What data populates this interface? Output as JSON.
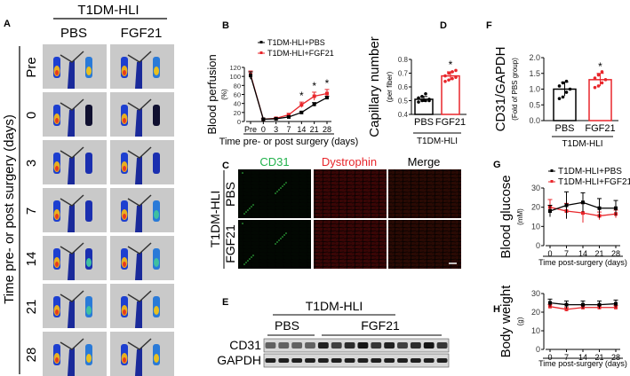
{
  "panel_labels": {
    "A": "A",
    "B": "B",
    "C": "C",
    "D": "D",
    "E": "E",
    "F": "F",
    "G": "G",
    "H": "H"
  },
  "panel_a": {
    "group_title": "T1DM-HLI",
    "columns": [
      "PBS",
      "FGF21"
    ],
    "rows": [
      "Pre",
      "0",
      "3",
      "7",
      "14",
      "21",
      "28"
    ],
    "ylabel": "Time pre- or post surgery (days)"
  },
  "panel_c": {
    "columns": [
      "CD31",
      "Dystrophin",
      "Merge"
    ],
    "column_colors": [
      "#22b24c",
      "#e8262b",
      "#000000"
    ],
    "group_label": "T1DM-HLI",
    "rows": [
      "PBS",
      "FGF21"
    ]
  },
  "panel_e": {
    "group_title": "T1DM-HLI",
    "groups": [
      "PBS",
      "FGF21"
    ],
    "bands": [
      "CD31",
      "GAPDH"
    ],
    "pbs_lanes": 4,
    "fgf21_lanes": 10
  },
  "colors": {
    "pbs": "#000000",
    "fgf21": "#e8262b"
  },
  "chart_data": [
    {
      "id": "B",
      "type": "line",
      "ylabel": "Blood perfusion",
      "yunit": "(%)",
      "xlabel": "Time pre- or post surgery (days)",
      "categories": [
        "Pre",
        "0",
        "3",
        "7",
        "14",
        "21",
        "28"
      ],
      "ylim": [
        0,
        120
      ],
      "yticks": [
        0,
        20,
        40,
        60,
        80,
        100,
        120
      ],
      "legend": "top",
      "series": [
        {
          "name": "T1DM-HLI+PBS",
          "values": [
            102,
            5,
            6,
            10,
            20,
            38,
            53
          ],
          "error": [
            8,
            1,
            1,
            2,
            2,
            4,
            3
          ]
        },
        {
          "name": "T1DM-HLI+FGF21",
          "values": [
            104,
            5,
            7,
            15,
            37,
            56,
            62
          ],
          "error": [
            8,
            1,
            2,
            3,
            6,
            9,
            9
          ]
        }
      ],
      "significance": [
        "",
        "",
        "",
        "",
        "*",
        "*",
        "*"
      ]
    },
    {
      "id": "D",
      "type": "bar",
      "ylabel": "Capillary number",
      "yunit": "(per fiber)",
      "categories": [
        "PBS",
        "FGF21"
      ],
      "group_label": "T1DM-HLI",
      "values": [
        0.51,
        0.68
      ],
      "error": [
        0.02,
        0.03
      ],
      "ylim": [
        0.4,
        0.8
      ],
      "yticks": [
        0.4,
        0.5,
        0.6,
        0.7,
        0.8
      ],
      "points": [
        [
          0.49,
          0.5,
          0.5,
          0.51,
          0.52,
          0.53,
          0.55,
          0.5
        ],
        [
          0.64,
          0.65,
          0.66,
          0.67,
          0.68,
          0.7,
          0.71,
          0.72
        ]
      ],
      "significance": [
        "",
        "*"
      ]
    },
    {
      "id": "F",
      "type": "bar",
      "ylabel": "CD31/GAPDH",
      "yunit": "(Fold of PBS group)",
      "categories": [
        "PBS",
        "FGF21"
      ],
      "group_label": "T1DM-HLI",
      "values": [
        1.0,
        1.3
      ],
      "error": [
        0.22,
        0.2
      ],
      "ylim": [
        0,
        2.0
      ],
      "yticks": [
        0.0,
        0.5,
        1.0,
        1.5,
        2.0
      ],
      "points": [
        [
          0.7,
          0.75,
          0.9,
          1.0,
          1.1,
          1.2,
          1.25
        ],
        [
          1.05,
          1.1,
          1.2,
          1.3,
          1.35,
          1.45,
          1.55
        ]
      ],
      "significance": [
        "",
        "*"
      ]
    },
    {
      "id": "G",
      "type": "line",
      "ylabel": "Blood glucose",
      "yunit": "(mM)",
      "xlabel": "Time post-surgery (days)",
      "categories": [
        "0",
        "7",
        "14",
        "21",
        "28"
      ],
      "ylim": [
        0,
        30
      ],
      "yticks": [
        0,
        10,
        20,
        30
      ],
      "legend": "top",
      "series": [
        {
          "name": "T1DM-HLI+PBS",
          "values": [
            18,
            21,
            22.5,
            19.5,
            19.5
          ],
          "error": [
            3,
            7,
            5,
            5,
            4
          ]
        },
        {
          "name": "T1DM-HLI+FGF21",
          "values": [
            20,
            18,
            17,
            15.5,
            16.5
          ],
          "error": [
            4,
            4,
            5,
            2,
            2
          ]
        }
      ]
    },
    {
      "id": "H",
      "type": "line",
      "ylabel": "Body weight",
      "yunit": "(g)",
      "xlabel": "Time post-surgery (days)",
      "categories": [
        "0",
        "7",
        "14",
        "21",
        "28"
      ],
      "ylim": [
        0,
        30
      ],
      "yticks": [
        0,
        10,
        20,
        30
      ],
      "series": [
        {
          "name": "T1DM-HLI+PBS",
          "values": [
            25,
            24,
            24,
            24,
            24.5
          ],
          "error": [
            2,
            2,
            2,
            2,
            2
          ]
        },
        {
          "name": "T1DM-HLI+FGF21",
          "values": [
            23,
            21.5,
            22.5,
            22.5,
            22.5
          ],
          "error": [
            1,
            1,
            1,
            1,
            1
          ]
        }
      ]
    }
  ]
}
